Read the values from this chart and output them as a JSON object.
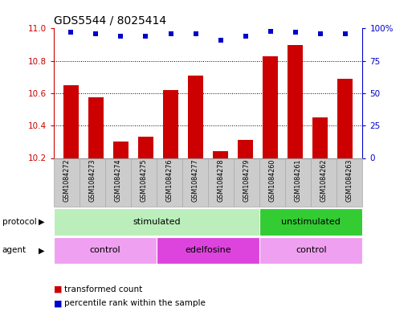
{
  "title": "GDS5544 / 8025414",
  "samples": [
    "GSM1084272",
    "GSM1084273",
    "GSM1084274",
    "GSM1084275",
    "GSM1084276",
    "GSM1084277",
    "GSM1084278",
    "GSM1084279",
    "GSM1084260",
    "GSM1084261",
    "GSM1084262",
    "GSM1084263"
  ],
  "transformed_count": [
    10.65,
    10.575,
    10.3,
    10.33,
    10.62,
    10.71,
    10.24,
    10.31,
    10.83,
    10.9,
    10.45,
    10.69
  ],
  "percentile_rank": [
    97,
    96,
    94,
    94,
    96,
    96,
    91,
    94,
    98,
    97,
    96,
    96
  ],
  "ylim_left": [
    10.2,
    11.0
  ],
  "ylim_right": [
    0,
    100
  ],
  "yticks_left": [
    10.2,
    10.4,
    10.6,
    10.8,
    11.0
  ],
  "yticks_right": [
    0,
    25,
    50,
    75,
    100
  ],
  "bar_color": "#cc0000",
  "dot_color": "#0000cc",
  "protocol_labels": [
    {
      "text": "stimulated",
      "start": 0,
      "end": 7,
      "color": "#bbeebb"
    },
    {
      "text": "unstimulated",
      "start": 8,
      "end": 11,
      "color": "#33cc33"
    }
  ],
  "agent_labels": [
    {
      "text": "control",
      "start": 0,
      "end": 3,
      "color": "#f0a0f0"
    },
    {
      "text": "edelfosine",
      "start": 4,
      "end": 7,
      "color": "#dd44dd"
    },
    {
      "text": "control",
      "start": 8,
      "end": 11,
      "color": "#f0a0f0"
    }
  ],
  "protocol_row_label": "protocol",
  "agent_row_label": "agent",
  "legend_bar_label": "transformed count",
  "legend_dot_label": "percentile rank within the sample",
  "tick_color_left": "#cc0000",
  "tick_color_right": "#0000cc",
  "bg_color": "#ffffff",
  "sample_box_color": "#cccccc",
  "sample_box_edge": "#aaaaaa"
}
